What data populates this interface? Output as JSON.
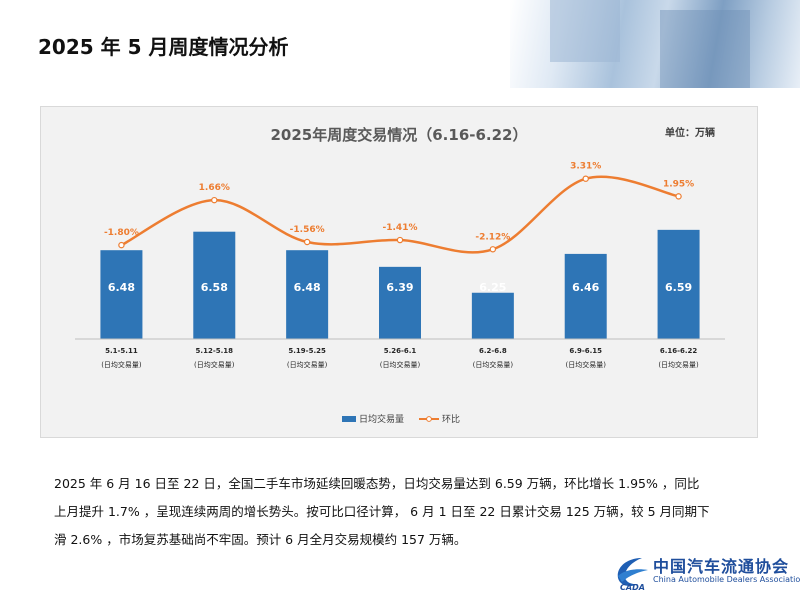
{
  "page_title": "2025 年 5 月周度情况分析",
  "unit_label": "单位：万辆",
  "chart_data": {
    "type": "bar",
    "title": "2025年周度交易情况（6.16-6.22）",
    "categories": [
      "5.1-5.11",
      "5.12-5.18",
      "5.19-5.25",
      "5.26-6.1",
      "6.2-6.8",
      "6.9-6.15",
      "6.16-6.22"
    ],
    "category_sub": "(日均交易量)",
    "series": [
      {
        "name": "日均交易量",
        "type": "bar",
        "values": [
          6.48,
          6.58,
          6.48,
          6.39,
          6.25,
          6.46,
          6.59
        ],
        "labels": [
          "6.48",
          "6.58",
          "6.48",
          "6.39",
          "6.25",
          "6.46",
          "6.59"
        ],
        "color": "#2e75b6"
      },
      {
        "name": "环比",
        "type": "line",
        "values": [
          -1.8,
          1.66,
          -1.56,
          -1.41,
          -2.12,
          3.31,
          1.95
        ],
        "labels": [
          "-1.80%",
          "1.66%",
          "-1.56%",
          "-1.41%",
          "-2.12%",
          "3.31%",
          "1.95%"
        ],
        "color": "#ed7d31"
      }
    ],
    "legend_position": "bottom",
    "grid": false
  },
  "paragraph": [
    "2025 年 6 月 16 日至 22 日，全国二手车市场延续回暖态势，日均交易量达到 6.59 万辆，环比增长 1.95% ，同比",
    "上月提升 1.7% ，呈现连续两周的增长势头。按可比口径计算， 6 月 1 日至 22 日累计交易 125 万辆，较 5 月同期下",
    "滑 2.6% ，市场复苏基础尚不牢固。预计 6 月全月交易规模约 157 万辆。"
  ],
  "logo": {
    "cn": "中国汽车流通协会",
    "en": "China Automobile Dealers Association",
    "mark": "CADA"
  }
}
